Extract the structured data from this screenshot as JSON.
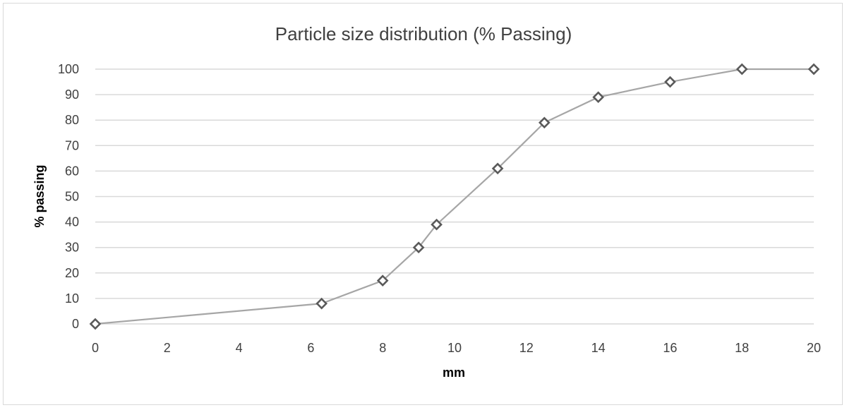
{
  "chart_data": {
    "type": "scatter",
    "title": "Particle size distribution (% Passing)",
    "xlabel": "mm",
    "ylabel": "% passing",
    "xlim": [
      0,
      20
    ],
    "ylim": [
      0,
      100
    ],
    "x_ticks": [
      "0",
      "2",
      "4",
      "6",
      "8",
      "10",
      "12",
      "14",
      "16",
      "18",
      "20"
    ],
    "y_ticks": [
      "0",
      "10",
      "20",
      "30",
      "40",
      "50",
      "60",
      "70",
      "80",
      "90",
      "100"
    ],
    "grid": "horizontal",
    "legend": "none",
    "series": [
      {
        "x": [
          0,
          6.3,
          8,
          9,
          9.5,
          11.2,
          12.5,
          14,
          16,
          18,
          20
        ],
        "y": [
          0,
          8,
          17,
          30,
          39,
          61,
          79,
          89,
          95,
          100,
          100
        ],
        "marker": "diamond",
        "line_color": "#a6a6a6",
        "marker_color": "#595959"
      }
    ]
  }
}
